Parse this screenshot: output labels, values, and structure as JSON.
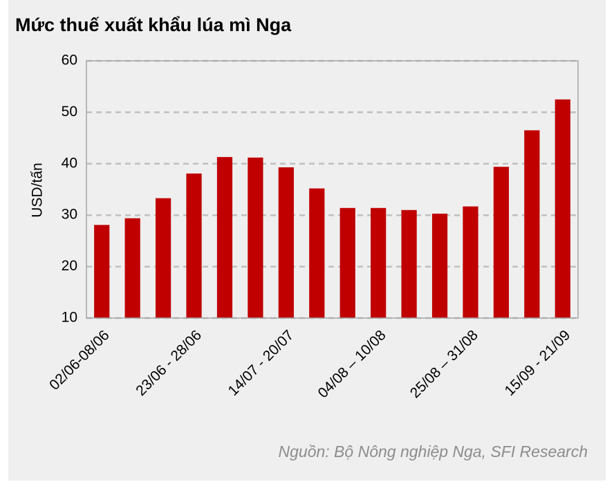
{
  "chart_data": {
    "type": "bar",
    "title": "Mức thuế xuất khẩu lúa mì Nga",
    "y_label": "USD/tấn",
    "source": "Nguồn: Bộ Nông nghiệp Nga, SFI Research",
    "categories": [
      "02/06-08/06",
      null,
      null,
      "23/06 - 28/06",
      null,
      null,
      "14/07 - 20/07",
      null,
      null,
      "04/08 – 10/08",
      null,
      null,
      "25/08 – 31/08",
      null,
      null,
      "15/09 - 21/09"
    ],
    "values": [
      28.1,
      29.4,
      33.3,
      38.1,
      41.3,
      41.2,
      39.3,
      35.2,
      31.4,
      31.4,
      31.0,
      30.3,
      31.7,
      39.4,
      46.5,
      52.5
    ],
    "color": "#c00000",
    "ylim": [
      10,
      60
    ],
    "yticks": [
      10,
      20,
      30,
      40,
      50,
      60
    ],
    "grid": true
  }
}
